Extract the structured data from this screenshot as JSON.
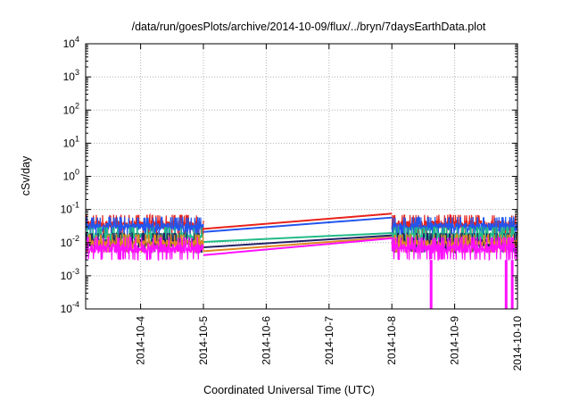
{
  "chart_data": {
    "type": "line",
    "title": "/data/run/goesPlots/archive/2014-10-09/flux/../bryn/7daysEarthData.plot",
    "xlabel": "Coordinated Universal Time (UTC)",
    "ylabel": "cSv/day",
    "yscale": "log",
    "ylim": [
      0.0001,
      10000
    ],
    "xlim": [
      "2014-10-03T03:00",
      "2014-10-10T00:00"
    ],
    "grid": true,
    "legend": "none",
    "x_ticks": [
      "2014-10-4",
      "2014-10-5",
      "2014-10-6",
      "2014-10-7",
      "2014-10-8",
      "2014-10-9",
      "2014-10-10"
    ],
    "y_ticks": [
      {
        "base": "10",
        "exp": "-4"
      },
      {
        "base": "10",
        "exp": "-3"
      },
      {
        "base": "10",
        "exp": "-2"
      },
      {
        "base": "10",
        "exp": "-1"
      },
      {
        "base": "10",
        "exp": "0"
      },
      {
        "base": "10",
        "exp": "1"
      },
      {
        "base": "10",
        "exp": "2"
      },
      {
        "base": "10",
        "exp": "3"
      },
      {
        "base": "10",
        "exp": "4"
      }
    ],
    "data_gap": {
      "start": "2014-10-05T00:00",
      "end": "2014-10-08T00:00"
    },
    "series": [
      {
        "color": "#e8221a",
        "gap_values": [
          0.026,
          0.075
        ],
        "noise_low": 0.018,
        "noise_high": 0.07
      },
      {
        "color": "#2255ee",
        "gap_values": [
          0.021,
          0.057
        ],
        "noise_low": 0.015,
        "noise_high": 0.06
      },
      {
        "color": "#22bb88",
        "gap_values": [
          0.0105,
          0.0195
        ],
        "noise_low": 0.008,
        "noise_high": 0.03
      },
      {
        "color": "#222266",
        "gap_values": [
          0.0072,
          0.0165
        ],
        "noise_low": 0.005,
        "noise_high": 0.02
      },
      {
        "color": "#dd8822",
        "gap_values": [
          0.0055,
          0.0145
        ],
        "noise_low": 0.005,
        "noise_high": 0.018
      },
      {
        "color": "#ff10ff",
        "gap_values": [
          0.0042,
          0.0135
        ],
        "noise_low": 0.003,
        "noise_high": 0.015
      }
    ],
    "dropouts": [
      {
        "x": "2014-10-08T15:00"
      },
      {
        "x": "2014-10-09T19:40"
      },
      {
        "x": "2014-10-09T22:00"
      }
    ]
  }
}
